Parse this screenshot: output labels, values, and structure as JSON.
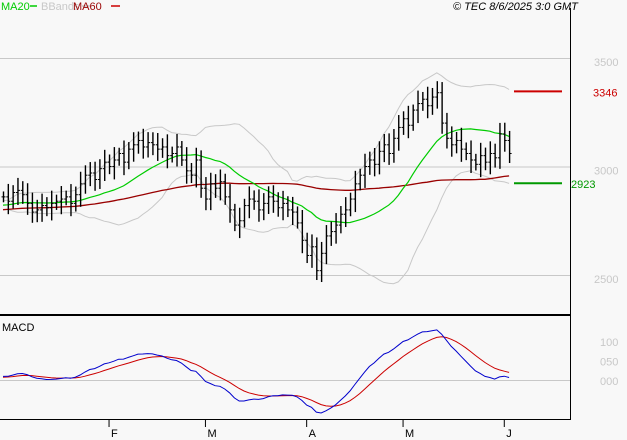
{
  "legend": [
    {
      "label": "MA20",
      "color": "#00cc00"
    },
    {
      "label": "BBands",
      "color": "#c8c8c8"
    },
    {
      "label": "MA60",
      "color": "#990000"
    }
  ],
  "copyright": "© TEC 8/6/2025 3:0 GMT",
  "macd_label": "MACD",
  "chart_data": {
    "type": "ohlc",
    "price_axis": {
      "ticks": [
        35,
        30,
        25
      ],
      "tick_labels": [
        "3500",
        "3000",
        "2500"
      ],
      "range": [
        23.7,
        37.6
      ]
    },
    "macd_axis": {
      "ticks": [
        1.0,
        0.5,
        0.0
      ],
      "tick_labels": [
        "100",
        "050",
        "000"
      ],
      "range": [
        -1.0,
        1.6
      ]
    },
    "months": [
      {
        "label": "F",
        "index": 22
      },
      {
        "label": "M",
        "index": 42
      },
      {
        "label": "A",
        "index": 63
      },
      {
        "label": "M",
        "index": 83
      },
      {
        "label": "J",
        "index": 104
      }
    ],
    "levels": [
      {
        "value": 33.46,
        "label": "3346",
        "color": "#cc0000"
      },
      {
        "value": 29.23,
        "label": "2923",
        "color": "#009900"
      }
    ],
    "close": [
      28.6,
      28.4,
      28.8,
      28.9,
      28.7,
      28.3,
      27.9,
      28.0,
      28.2,
      28.1,
      28.3,
      28.4,
      28.5,
      28.6,
      28.3,
      28.7,
      29.2,
      29.6,
      29.7,
      29.4,
      29.9,
      30.2,
      30.0,
      30.3,
      30.6,
      30.2,
      30.8,
      31.0,
      31.2,
      30.9,
      31.1,
      31.0,
      30.8,
      30.9,
      30.5,
      30.6,
      30.9,
      30.3,
      29.8,
      29.6,
      30.3,
      29.0,
      28.5,
      29.2,
      29.0,
      29.3,
      28.6,
      28.0,
      27.3,
      27.5,
      28.2,
      28.5,
      28.4,
      28.0,
      28.3,
      28.6,
      28.4,
      28.1,
      28.3,
      28.0,
      27.9,
      27.4,
      26.6,
      25.9,
      26.3,
      25.2,
      26.0,
      26.8,
      27.0,
      27.3,
      27.8,
      28.0,
      28.5,
      29.2,
      29.6,
      30.0,
      30.3,
      30.1,
      30.7,
      31.0,
      30.6,
      31.3,
      31.8,
      32.2,
      31.9,
      32.6,
      32.9,
      33.1,
      32.8,
      33.2,
      33.4,
      32.0,
      31.3,
      31.0,
      31.2,
      30.8,
      30.6,
      30.3,
      30.1,
      30.5,
      30.2,
      30.6,
      30.4,
      31.5,
      31.2,
      30.6
    ],
    "series": [
      "OHLC",
      "MA20",
      "MA60",
      "BBands",
      "MACD",
      "Signal"
    ]
  }
}
